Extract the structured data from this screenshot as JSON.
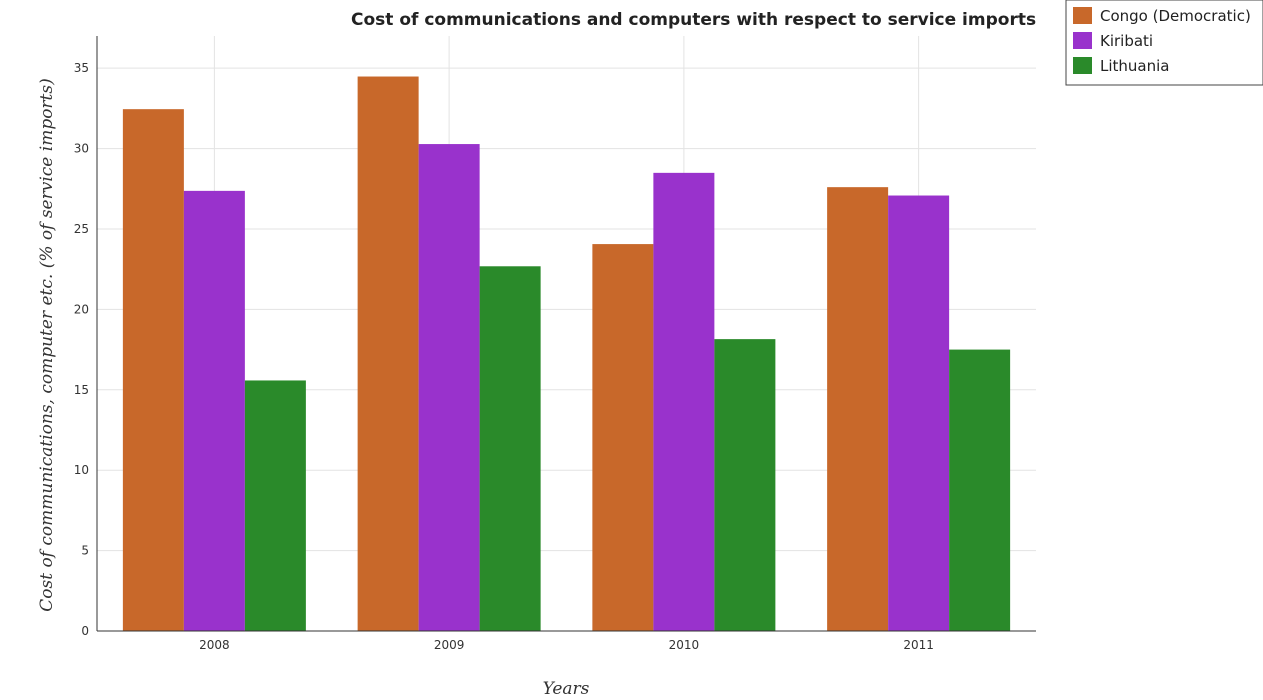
{
  "colors": {
    "Congo (Democratic)": "#c8682a",
    "Kiribati": "#9932cc",
    "Lithuania": "#2a8a2a"
  },
  "chart_data": {
    "type": "bar",
    "title": "Cost of communications and computers with respect to service imports",
    "xlabel": "Years",
    "ylabel": "Cost of communications, computer etc. (% of service imports)",
    "categories": [
      "2008",
      "2009",
      "2010",
      "2011"
    ],
    "ylim": [
      0,
      37
    ],
    "yticks": [
      0,
      5,
      10,
      15,
      20,
      25,
      30,
      35
    ],
    "grid": true,
    "legend_position": "top-right",
    "series": [
      {
        "name": "Congo (Democratic)",
        "values": [
          32.45,
          34.48,
          24.06,
          27.6
        ]
      },
      {
        "name": "Kiribati",
        "values": [
          27.37,
          30.28,
          28.49,
          27.08
        ]
      },
      {
        "name": "Lithuania",
        "values": [
          15.58,
          22.68,
          18.15,
          17.5
        ]
      }
    ]
  }
}
